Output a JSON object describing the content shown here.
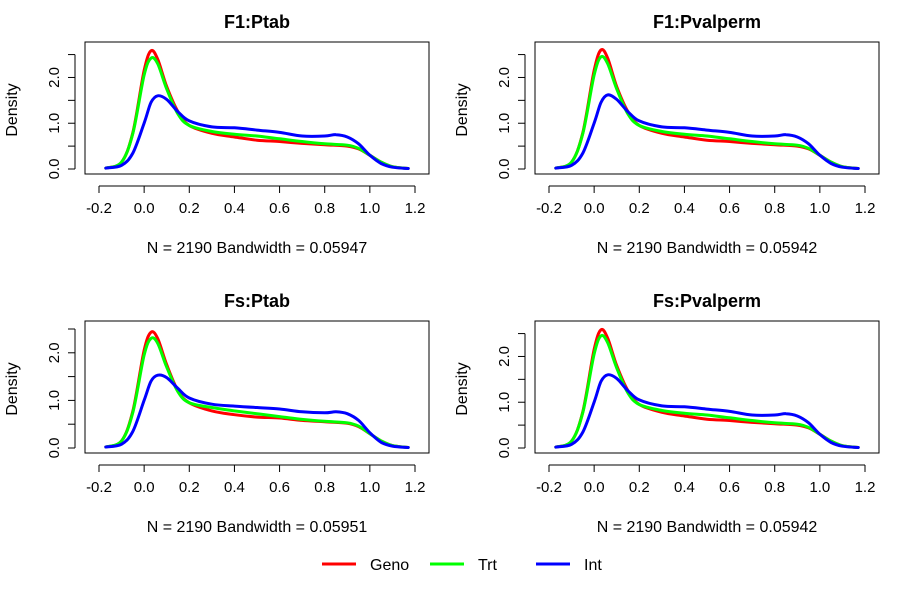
{
  "chart_data": [
    {
      "type": "line",
      "title": "F1:Ptab",
      "xlabel": "N = 2190   Bandwidth = 0.05947",
      "ylabel": "Density",
      "xlim": [
        -0.2,
        1.2
      ],
      "ylim": [
        0,
        2.6
      ],
      "xticks": [
        "-0.2",
        "0.0",
        "0.2",
        "0.4",
        "0.6",
        "0.8",
        "1.0",
        "1.2"
      ],
      "yticks": [
        "0.0",
        "1.0",
        "2.0"
      ],
      "series": [
        {
          "name": "Geno",
          "color": "#ff0000",
          "x": [
            -0.17,
            -0.1,
            -0.05,
            0.0,
            0.03,
            0.06,
            0.1,
            0.15,
            0.2,
            0.3,
            0.4,
            0.5,
            0.6,
            0.7,
            0.8,
            0.9,
            0.95,
            1.0,
            1.05,
            1.1,
            1.17
          ],
          "y": [
            0.02,
            0.15,
            0.8,
            2.15,
            2.58,
            2.4,
            1.8,
            1.25,
            0.95,
            0.78,
            0.7,
            0.63,
            0.6,
            0.56,
            0.53,
            0.5,
            0.44,
            0.3,
            0.15,
            0.05,
            0.01
          ]
        },
        {
          "name": "Trt",
          "color": "#00ff00",
          "x": [
            -0.17,
            -0.1,
            -0.05,
            0.0,
            0.03,
            0.06,
            0.1,
            0.15,
            0.2,
            0.3,
            0.4,
            0.5,
            0.6,
            0.7,
            0.8,
            0.9,
            0.95,
            1.0,
            1.05,
            1.1,
            1.17
          ],
          "y": [
            0.02,
            0.15,
            0.78,
            2.05,
            2.42,
            2.3,
            1.75,
            1.2,
            0.95,
            0.82,
            0.76,
            0.72,
            0.66,
            0.6,
            0.55,
            0.52,
            0.45,
            0.3,
            0.15,
            0.05,
            0.01
          ]
        },
        {
          "name": "Int",
          "color": "#0000ff",
          "x": [
            -0.17,
            -0.1,
            -0.05,
            0.0,
            0.03,
            0.06,
            0.1,
            0.15,
            0.2,
            0.3,
            0.4,
            0.5,
            0.6,
            0.7,
            0.8,
            0.85,
            0.9,
            0.95,
            1.0,
            1.05,
            1.1,
            1.17
          ],
          "y": [
            0.02,
            0.08,
            0.35,
            1.0,
            1.45,
            1.6,
            1.52,
            1.25,
            1.05,
            0.92,
            0.9,
            0.85,
            0.8,
            0.72,
            0.72,
            0.75,
            0.7,
            0.55,
            0.3,
            0.12,
            0.04,
            0.01
          ]
        }
      ]
    },
    {
      "type": "line",
      "title": "F1:Pvalperm",
      "xlabel": "N = 2190   Bandwidth = 0.05942",
      "ylabel": "Density",
      "xlim": [
        -0.2,
        1.2
      ],
      "ylim": [
        0,
        2.6
      ],
      "xticks": [
        "-0.2",
        "0.0",
        "0.2",
        "0.4",
        "0.6",
        "0.8",
        "1.0",
        "1.2"
      ],
      "yticks": [
        "0.0",
        "1.0",
        "2.0"
      ],
      "series": [
        {
          "name": "Geno",
          "color": "#ff0000",
          "x": [
            -0.17,
            -0.1,
            -0.05,
            0.0,
            0.03,
            0.06,
            0.1,
            0.15,
            0.2,
            0.3,
            0.4,
            0.5,
            0.6,
            0.7,
            0.8,
            0.9,
            0.95,
            1.0,
            1.05,
            1.1,
            1.17
          ],
          "y": [
            0.02,
            0.15,
            0.8,
            2.15,
            2.6,
            2.42,
            1.8,
            1.25,
            0.95,
            0.78,
            0.7,
            0.63,
            0.6,
            0.56,
            0.53,
            0.5,
            0.44,
            0.3,
            0.15,
            0.05,
            0.01
          ]
        },
        {
          "name": "Trt",
          "color": "#00ff00",
          "x": [
            -0.17,
            -0.1,
            -0.05,
            0.0,
            0.03,
            0.06,
            0.1,
            0.15,
            0.2,
            0.3,
            0.4,
            0.5,
            0.6,
            0.7,
            0.8,
            0.9,
            0.95,
            1.0,
            1.05,
            1.1,
            1.17
          ],
          "y": [
            0.02,
            0.15,
            0.78,
            2.05,
            2.45,
            2.3,
            1.75,
            1.2,
            0.95,
            0.82,
            0.76,
            0.72,
            0.66,
            0.6,
            0.55,
            0.52,
            0.45,
            0.3,
            0.15,
            0.05,
            0.01
          ]
        },
        {
          "name": "Int",
          "color": "#0000ff",
          "x": [
            -0.17,
            -0.1,
            -0.05,
            0.0,
            0.03,
            0.06,
            0.1,
            0.15,
            0.2,
            0.3,
            0.4,
            0.5,
            0.6,
            0.7,
            0.8,
            0.85,
            0.9,
            0.95,
            1.0,
            1.05,
            1.1,
            1.17
          ],
          "y": [
            0.02,
            0.08,
            0.35,
            1.0,
            1.45,
            1.62,
            1.52,
            1.25,
            1.05,
            0.92,
            0.9,
            0.85,
            0.8,
            0.72,
            0.72,
            0.75,
            0.7,
            0.55,
            0.3,
            0.12,
            0.04,
            0.01
          ]
        }
      ]
    },
    {
      "type": "line",
      "title": "Fs:Ptab",
      "xlabel": "N = 2190   Bandwidth = 0.05951",
      "ylabel": "Density",
      "xlim": [
        -0.2,
        1.2
      ],
      "ylim": [
        0,
        2.5
      ],
      "xticks": [
        "-0.2",
        "0.0",
        "0.2",
        "0.4",
        "0.6",
        "0.8",
        "1.0",
        "1.2"
      ],
      "yticks": [
        "0.0",
        "1.0",
        "2.0"
      ],
      "series": [
        {
          "name": "Geno",
          "color": "#ff0000",
          "x": [
            -0.17,
            -0.1,
            -0.05,
            0.0,
            0.03,
            0.06,
            0.1,
            0.15,
            0.2,
            0.3,
            0.4,
            0.5,
            0.6,
            0.7,
            0.8,
            0.9,
            0.95,
            1.0,
            1.05,
            1.1,
            1.17
          ],
          "y": [
            0.02,
            0.15,
            0.78,
            2.05,
            2.43,
            2.3,
            1.75,
            1.2,
            0.95,
            0.78,
            0.7,
            0.65,
            0.63,
            0.58,
            0.55,
            0.52,
            0.45,
            0.3,
            0.15,
            0.05,
            0.01
          ]
        },
        {
          "name": "Trt",
          "color": "#00ff00",
          "x": [
            -0.17,
            -0.1,
            -0.05,
            0.0,
            0.03,
            0.06,
            0.1,
            0.15,
            0.2,
            0.3,
            0.4,
            0.5,
            0.6,
            0.7,
            0.8,
            0.9,
            0.95,
            1.0,
            1.05,
            1.1,
            1.17
          ],
          "y": [
            0.02,
            0.15,
            0.75,
            1.95,
            2.3,
            2.2,
            1.7,
            1.18,
            0.95,
            0.85,
            0.78,
            0.72,
            0.66,
            0.6,
            0.56,
            0.53,
            0.46,
            0.3,
            0.15,
            0.05,
            0.01
          ]
        },
        {
          "name": "Int",
          "color": "#0000ff",
          "x": [
            -0.17,
            -0.1,
            -0.05,
            0.0,
            0.03,
            0.06,
            0.1,
            0.15,
            0.2,
            0.3,
            0.4,
            0.5,
            0.6,
            0.7,
            0.8,
            0.85,
            0.9,
            0.95,
            1.0,
            1.05,
            1.1,
            1.17
          ],
          "y": [
            0.02,
            0.08,
            0.35,
            1.0,
            1.4,
            1.53,
            1.48,
            1.25,
            1.05,
            0.92,
            0.88,
            0.85,
            0.82,
            0.76,
            0.74,
            0.76,
            0.72,
            0.58,
            0.32,
            0.12,
            0.04,
            0.01
          ]
        }
      ]
    },
    {
      "type": "line",
      "title": "Fs:Pvalperm",
      "xlabel": "N = 2190   Bandwidth = 0.05942",
      "ylabel": "Density",
      "xlim": [
        -0.2,
        1.2
      ],
      "ylim": [
        0,
        2.6
      ],
      "xticks": [
        "-0.2",
        "0.0",
        "0.2",
        "0.4",
        "0.6",
        "0.8",
        "1.0",
        "1.2"
      ],
      "yticks": [
        "0.0",
        "1.0",
        "2.0"
      ],
      "series": [
        {
          "name": "Geno",
          "color": "#ff0000",
          "x": [
            -0.17,
            -0.1,
            -0.05,
            0.0,
            0.03,
            0.06,
            0.1,
            0.15,
            0.2,
            0.3,
            0.4,
            0.5,
            0.6,
            0.7,
            0.8,
            0.9,
            0.95,
            1.0,
            1.05,
            1.1,
            1.17
          ],
          "y": [
            0.02,
            0.15,
            0.8,
            2.15,
            2.58,
            2.4,
            1.8,
            1.25,
            0.95,
            0.78,
            0.7,
            0.63,
            0.6,
            0.56,
            0.53,
            0.5,
            0.44,
            0.3,
            0.15,
            0.05,
            0.01
          ]
        },
        {
          "name": "Trt",
          "color": "#00ff00",
          "x": [
            -0.17,
            -0.1,
            -0.05,
            0.0,
            0.03,
            0.06,
            0.1,
            0.15,
            0.2,
            0.3,
            0.4,
            0.5,
            0.6,
            0.7,
            0.8,
            0.9,
            0.95,
            1.0,
            1.05,
            1.1,
            1.17
          ],
          "y": [
            0.02,
            0.15,
            0.78,
            2.05,
            2.45,
            2.3,
            1.75,
            1.2,
            0.95,
            0.82,
            0.76,
            0.72,
            0.66,
            0.6,
            0.55,
            0.52,
            0.45,
            0.3,
            0.15,
            0.05,
            0.01
          ]
        },
        {
          "name": "Int",
          "color": "#0000ff",
          "x": [
            -0.17,
            -0.1,
            -0.05,
            0.0,
            0.03,
            0.06,
            0.1,
            0.15,
            0.2,
            0.3,
            0.4,
            0.5,
            0.6,
            0.7,
            0.8,
            0.85,
            0.9,
            0.95,
            1.0,
            1.05,
            1.1,
            1.17
          ],
          "y": [
            0.02,
            0.08,
            0.35,
            1.0,
            1.45,
            1.6,
            1.52,
            1.25,
            1.05,
            0.92,
            0.9,
            0.85,
            0.8,
            0.72,
            0.72,
            0.75,
            0.7,
            0.55,
            0.3,
            0.12,
            0.04,
            0.01
          ]
        }
      ]
    }
  ],
  "legend": {
    "items": [
      {
        "label": "Geno",
        "color": "#ff0000"
      },
      {
        "label": "Trt",
        "color": "#00ff00"
      },
      {
        "label": "Int",
        "color": "#0000ff"
      }
    ]
  }
}
